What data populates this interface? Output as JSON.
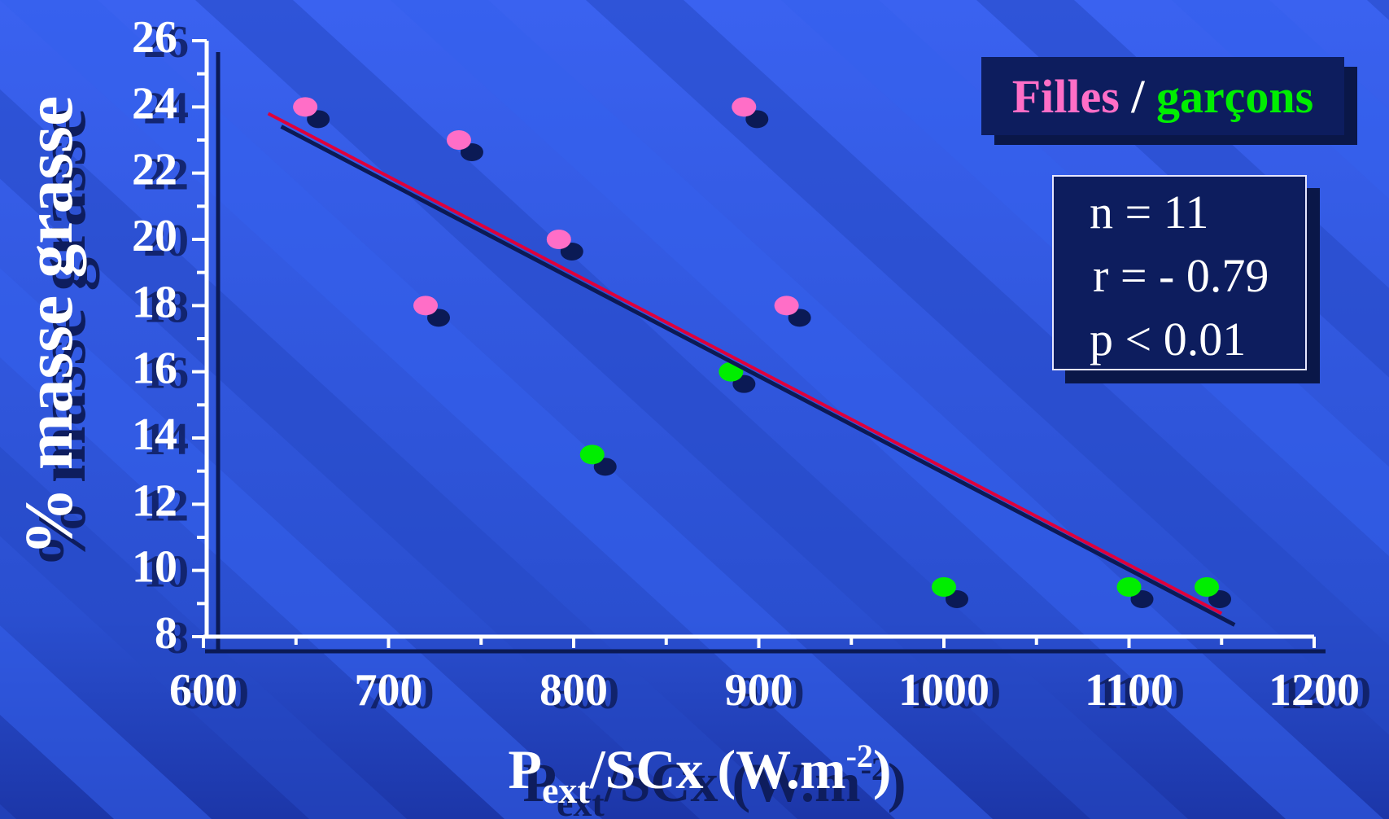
{
  "chart_data": {
    "type": "scatter",
    "xlabel_main": "P",
    "xlabel_sub": "ext",
    "xlabel_rest": "/SCx (W.m",
    "xlabel_sup": "-2",
    "xlabel_close": ")",
    "ylabel": "% masse grasse",
    "xlim": [
      600,
      1200
    ],
    "ylim": [
      8,
      26
    ],
    "xticks": [
      "600",
      "700",
      "800",
      "900",
      "1000",
      "1100",
      "1200"
    ],
    "yticks": [
      "8",
      "10",
      "12",
      "14",
      "16",
      "18",
      "20",
      "22",
      "24",
      "26"
    ],
    "series": [
      {
        "name": "Filles",
        "color": "#ff6ec7",
        "points": [
          {
            "x": 655,
            "y": 24
          },
          {
            "x": 738,
            "y": 23
          },
          {
            "x": 792,
            "y": 20
          },
          {
            "x": 720,
            "y": 18
          },
          {
            "x": 892,
            "y": 24
          },
          {
            "x": 915,
            "y": 18
          }
        ]
      },
      {
        "name": "garçons",
        "color": "#00ee00",
        "points": [
          {
            "x": 885,
            "y": 16
          },
          {
            "x": 810,
            "y": 13.5
          },
          {
            "x": 1000,
            "y": 9.5
          },
          {
            "x": 1100,
            "y": 9.5
          },
          {
            "x": 1142,
            "y": 9.5
          }
        ]
      }
    ],
    "regression": {
      "color": "#e0003a",
      "x1": 635,
      "y1": 23.8,
      "x2": 1150,
      "y2": 8.7
    },
    "legend": {
      "filles": "Filles",
      "sep": " / ",
      "garcons": "garçons",
      "placement": "top-right"
    },
    "annotations": {
      "n": "n = 11",
      "r": "r = - 0.79",
      "p": "p < 0.01"
    }
  }
}
